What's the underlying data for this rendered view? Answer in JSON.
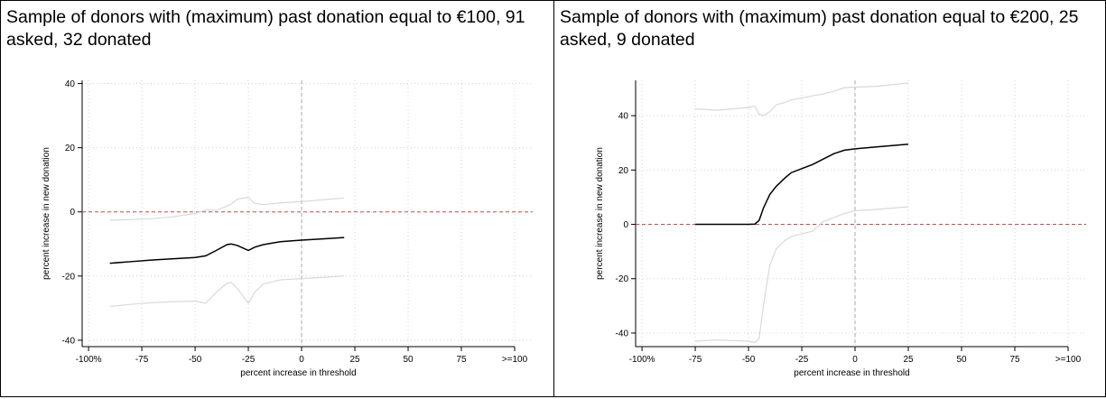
{
  "chart_data": [
    {
      "type": "line",
      "title": "Sample of donors with (maximum) past donation equal to €100, 91 asked, 32 donated",
      "xlabel": "percent increase in threshold",
      "ylabel": "percent increase in new donation",
      "x": [
        -90,
        -80,
        -70,
        -60,
        -50,
        -45,
        -40,
        -35,
        -33,
        -30,
        -25,
        -22,
        -18,
        -10,
        0,
        10,
        20
      ],
      "series": [
        {
          "color": "#d9d9d9",
          "values": [
            -2.6,
            -2.4,
            -2.1,
            -1.5,
            -0.5,
            0.6,
            0.5,
            1.8,
            2.5,
            4.0,
            4.5,
            2.6,
            2.3,
            2.8,
            3.2,
            3.8,
            4.3
          ]
        },
        {
          "color": "#d9d9d9",
          "values": [
            -29.5,
            -28.8,
            -28.3,
            -28.0,
            -27.8,
            -28.5,
            -25,
            -22.3,
            -22,
            -24,
            -28.5,
            -25,
            -22.5,
            -21.2,
            -20.8,
            -20.4,
            -20
          ]
        },
        {
          "color": "#000000",
          "values": [
            -16,
            -15.5,
            -15,
            -14.6,
            -14.2,
            -13.7,
            -12,
            -10.2,
            -10,
            -10.5,
            -12,
            -11,
            -10.2,
            -9.3,
            -8.8,
            -8.4,
            -8
          ]
        }
      ],
      "xlim": [
        -103,
        100
      ],
      "xticks": [
        {
          "value": -100,
          "label": "-100%"
        },
        -75,
        -50,
        -25,
        0,
        25,
        50,
        75,
        {
          "value": 100,
          "label": ">=100"
        }
      ],
      "ylim": [
        -42,
        41
      ],
      "yticks": [
        -40,
        -20,
        0,
        20,
        40
      ],
      "grid": true,
      "hline": 0,
      "vline": 0
    },
    {
      "type": "line",
      "title": "Sample of donors with (maximum) past donation equal to €200, 25 asked, 9 donated",
      "xlabel": "percent increase in threshold",
      "ylabel": "percent increase in new donation",
      "x": [
        -75,
        -65,
        -50,
        -47,
        -45,
        -43,
        -40,
        -37,
        -33,
        -30,
        -25,
        -20,
        -15,
        -10,
        -5,
        0,
        10,
        25
      ],
      "series": [
        {
          "color": "#d9d9d9",
          "values": [
            42.5,
            42,
            43,
            43.5,
            40.5,
            40,
            41.5,
            44,
            44.8,
            45.8,
            46.5,
            47.3,
            48,
            49,
            50.3,
            50.5,
            50.8,
            52
          ]
        },
        {
          "color": "#d9d9d9",
          "values": [
            -43,
            -42.5,
            -43,
            -43.5,
            -42,
            -30,
            -15,
            -9,
            -6,
            -4.5,
            -3.5,
            -2.5,
            1,
            2.5,
            4,
            5,
            5.5,
            6.5
          ]
        },
        {
          "color": "#000000",
          "values": [
            0,
            0,
            0,
            0.1,
            1.5,
            6,
            11,
            14,
            17,
            19,
            20.5,
            22,
            24,
            26,
            27.3,
            27.8,
            28.5,
            29.5
          ]
        }
      ],
      "xlim": [
        -103,
        100
      ],
      "xticks": [
        {
          "value": -100,
          "label": "-100%"
        },
        -75,
        -50,
        -25,
        0,
        25,
        50,
        75,
        {
          "value": 100,
          "label": ">=100"
        }
      ],
      "ylim": [
        -45,
        53
      ],
      "yticks": [
        -40,
        -20,
        0,
        20,
        40
      ],
      "grid": true,
      "hline": 0,
      "vline": 0
    }
  ]
}
